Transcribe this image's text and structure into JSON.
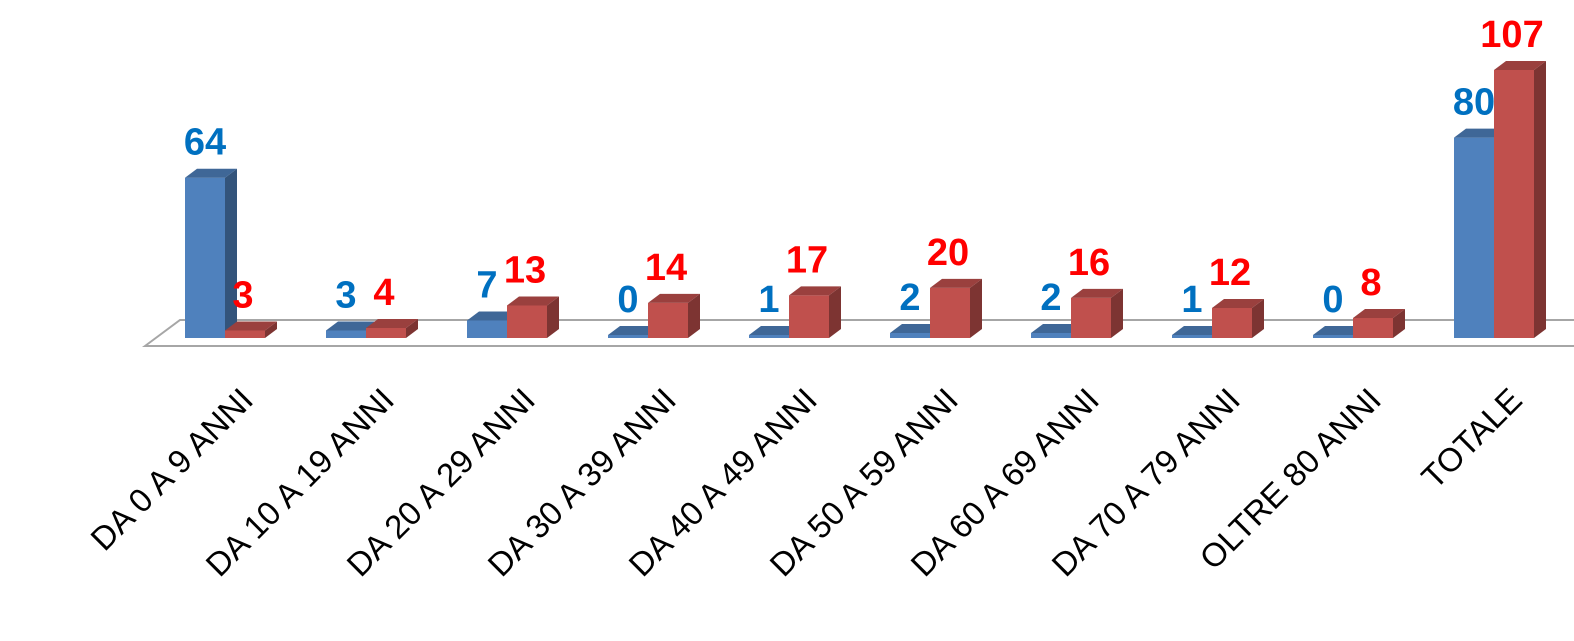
{
  "chart_data": {
    "type": "bar",
    "categories": [
      "DA 0 A 9 ANNI",
      "DA 10 A 19 ANNI",
      "DA 20 A 29 ANNI",
      "DA 30 A 39 ANNI",
      "DA 40 A 49 ANNI",
      "DA 50 A 59 ANNI",
      "DA 60 A 69 ANNI",
      "DA 70 A 79 ANNI",
      "OLTRE 80 ANNI",
      "TOTALE"
    ],
    "series": [
      {
        "values": [
          64,
          3,
          7,
          0,
          1,
          2,
          2,
          1,
          0,
          80
        ],
        "color": "#4F81BD",
        "label_color": "#0070C0"
      },
      {
        "values": [
          3,
          4,
          13,
          14,
          17,
          20,
          16,
          12,
          8,
          107
        ],
        "color": "#C0504D",
        "label_color": "#FF0000"
      }
    ],
    "ylim": [
      0,
      107
    ],
    "grid": false,
    "style": "3d-column"
  }
}
